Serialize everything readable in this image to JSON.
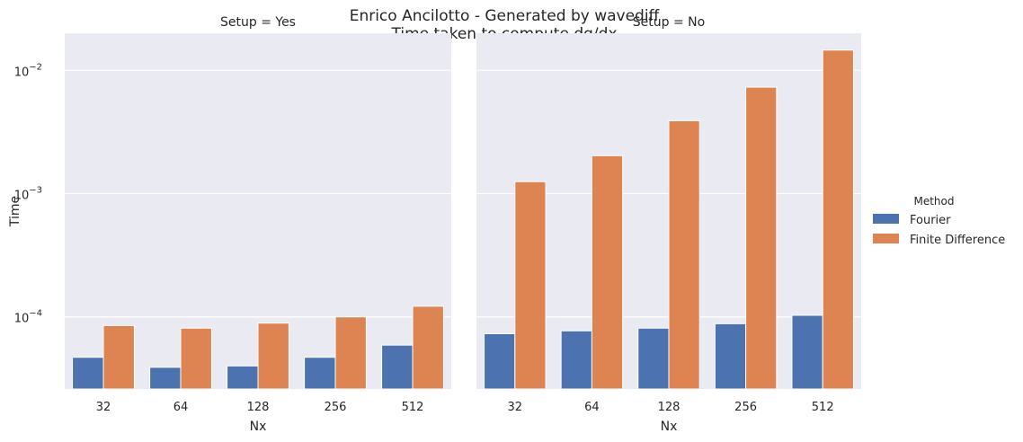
{
  "chart_data": {
    "type": "bar",
    "title_lines": [
      "Enrico Ancilotto - Generated by wavediff",
      "Time taken to compute dg/dx"
    ],
    "ylabel": "Time",
    "yscale": "log",
    "ylim": [
      2.6e-05,
      0.02
    ],
    "ytick_labels": [
      {
        "base": "10",
        "exp": "−4",
        "value": 0.0001
      },
      {
        "base": "10",
        "exp": "−3",
        "value": 0.001
      },
      {
        "base": "10",
        "exp": "−2",
        "value": 0.01
      }
    ],
    "grid": true,
    "background": "#eaeaf2",
    "legend": {
      "title": "Method",
      "placement": "right",
      "entries": [
        {
          "name": "Fourier",
          "color": "#4c72b0"
        },
        {
          "name": "Finite Difference",
          "color": "#dd8452"
        }
      ]
    },
    "facets": [
      {
        "title": "Setup = Yes",
        "xlabel": "Nx",
        "categories": [
          "32",
          "64",
          "128",
          "256",
          "512"
        ],
        "series": [
          {
            "name": "Fourier",
            "values": [
              4.7e-05,
              3.9e-05,
              4e-05,
              4.7e-05,
              5.9e-05
            ]
          },
          {
            "name": "Finite Difference",
            "values": [
              8.5e-05,
              8.1e-05,
              8.9e-05,
              0.0001,
              0.000122
            ]
          }
        ]
      },
      {
        "title": "Setup = No",
        "xlabel": "Nx",
        "categories": [
          "32",
          "64",
          "128",
          "256",
          "512"
        ],
        "series": [
          {
            "name": "Fourier",
            "values": [
              7.3e-05,
              7.7e-05,
              8.1e-05,
              8.8e-05,
              0.000103
            ]
          },
          {
            "name": "Finite Difference",
            "values": [
              0.00125,
              0.00203,
              0.0039,
              0.0073,
              0.0146
            ]
          }
        ]
      }
    ]
  }
}
